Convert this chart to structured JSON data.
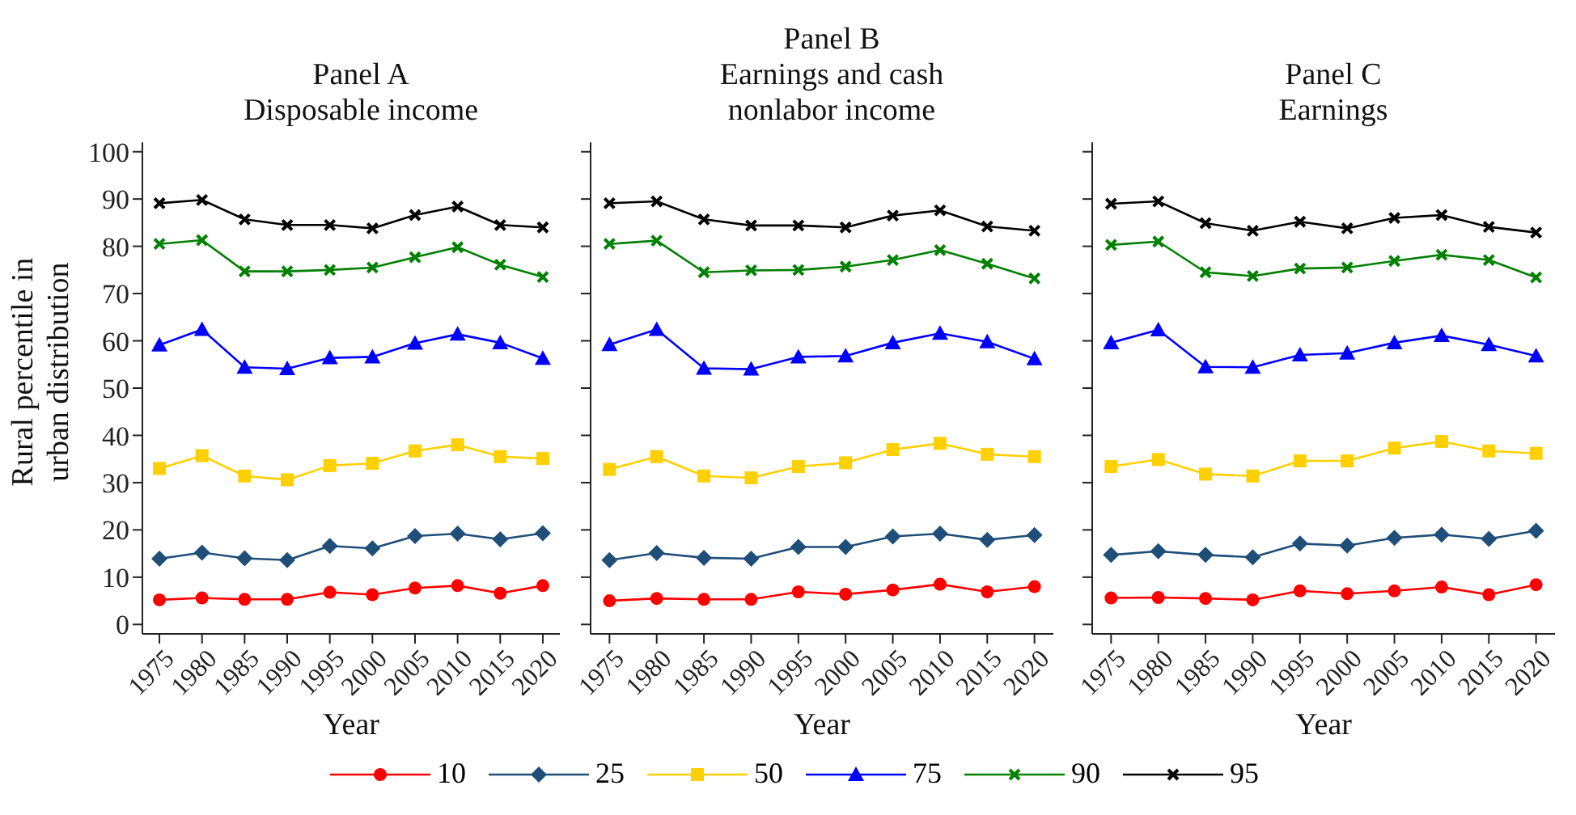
{
  "chart_data": [
    {
      "type": "line",
      "title": "Panel A\nDisposable income",
      "xlabel": "Year",
      "ylabel": "Rural percentile in\nurban distribution",
      "x": [
        1975,
        1980,
        1985,
        1990,
        1995,
        2000,
        2005,
        2010,
        2015,
        2020
      ],
      "xlim": [
        1973,
        2022
      ],
      "xticks": [
        1975,
        1980,
        1985,
        1990,
        1995,
        2000,
        2005,
        2010,
        2015,
        2020
      ],
      "ylim": [
        -2,
        102
      ],
      "yticks": [
        0,
        10,
        20,
        30,
        40,
        50,
        60,
        70,
        80,
        90,
        100
      ],
      "grid": false,
      "legend": "bottom",
      "series": [
        {
          "name": "10",
          "color": "#ff0000",
          "marker": "circle",
          "values": [
            5.2,
            5.6,
            5.3,
            5.3,
            6.8,
            6.3,
            7.7,
            8.2,
            6.6,
            8.2
          ]
        },
        {
          "name": "25",
          "color": "#1f4e79",
          "marker": "diamond",
          "values": [
            13.9,
            15.2,
            14.0,
            13.6,
            16.6,
            16.1,
            18.7,
            19.2,
            18.0,
            19.3
          ]
        },
        {
          "name": "50",
          "color": "#ffd000",
          "marker": "square",
          "values": [
            33.0,
            35.7,
            31.4,
            30.6,
            33.6,
            34.1,
            36.7,
            38.0,
            35.5,
            35.1
          ]
        },
        {
          "name": "75",
          "color": "#0000ff",
          "marker": "triangle",
          "values": [
            59.1,
            62.4,
            54.4,
            54.1,
            56.4,
            56.6,
            59.5,
            61.4,
            59.6,
            56.3
          ]
        },
        {
          "name": "90",
          "color": "#008000",
          "marker": "cross",
          "values": [
            80.5,
            81.3,
            74.7,
            74.7,
            75.0,
            75.5,
            77.7,
            79.8,
            76.1,
            73.5
          ]
        },
        {
          "name": "95",
          "color": "#000000",
          "marker": "cross",
          "values": [
            89.1,
            89.8,
            85.7,
            84.5,
            84.5,
            83.8,
            86.6,
            88.4,
            84.5,
            84.0
          ]
        }
      ]
    },
    {
      "type": "line",
      "title": "Panel B\nEarnings and cash\nnonlabor income",
      "xlabel": "Year",
      "x": [
        1975,
        1980,
        1985,
        1990,
        1995,
        2000,
        2005,
        2010,
        2015,
        2020
      ],
      "xlim": [
        1973,
        2022
      ],
      "xticks": [
        1975,
        1980,
        1985,
        1990,
        1995,
        2000,
        2005,
        2010,
        2015,
        2020
      ],
      "ylim": [
        -2,
        102
      ],
      "yticks": [
        0,
        10,
        20,
        30,
        40,
        50,
        60,
        70,
        80,
        90,
        100
      ],
      "grid": false,
      "tick_labels": "x",
      "series": [
        {
          "color": "#ff0000",
          "marker": "circle",
          "values": [
            5.0,
            5.5,
            5.3,
            5.3,
            6.9,
            6.4,
            7.3,
            8.5,
            6.9,
            8.0
          ]
        },
        {
          "color": "#1f4e79",
          "marker": "diamond",
          "values": [
            13.6,
            15.1,
            14.1,
            13.9,
            16.4,
            16.4,
            18.6,
            19.2,
            17.9,
            18.9
          ]
        },
        {
          "color": "#ffd000",
          "marker": "square",
          "values": [
            32.8,
            35.5,
            31.4,
            31.0,
            33.4,
            34.2,
            37.0,
            38.3,
            36.0,
            35.5
          ]
        },
        {
          "color": "#0000ff",
          "marker": "triangle",
          "values": [
            59.2,
            62.4,
            54.2,
            54.0,
            56.6,
            56.8,
            59.6,
            61.6,
            59.8,
            56.2
          ]
        },
        {
          "color": "#008000",
          "marker": "cross",
          "values": [
            80.5,
            81.2,
            74.5,
            74.9,
            75.0,
            75.7,
            77.1,
            79.2,
            76.3,
            73.2
          ]
        },
        {
          "color": "#000000",
          "marker": "cross",
          "values": [
            89.1,
            89.5,
            85.7,
            84.4,
            84.4,
            84.0,
            86.5,
            87.6,
            84.2,
            83.3
          ]
        }
      ]
    },
    {
      "type": "line",
      "title": "Panel C\nEarnings",
      "xlabel": "Year",
      "x": [
        1975,
        1980,
        1985,
        1990,
        1995,
        2000,
        2005,
        2010,
        2015,
        2020
      ],
      "xlim": [
        1973,
        2022
      ],
      "xticks": [
        1975,
        1980,
        1985,
        1990,
        1995,
        2000,
        2005,
        2010,
        2015,
        2020
      ],
      "ylim": [
        -2,
        102
      ],
      "yticks": [
        0,
        10,
        20,
        30,
        40,
        50,
        60,
        70,
        80,
        90,
        100
      ],
      "grid": false,
      "tick_labels": "x",
      "series": [
        {
          "color": "#ff0000",
          "marker": "circle",
          "values": [
            5.6,
            5.7,
            5.5,
            5.2,
            7.1,
            6.5,
            7.1,
            7.9,
            6.3,
            8.4
          ]
        },
        {
          "color": "#1f4e79",
          "marker": "diamond",
          "values": [
            14.7,
            15.5,
            14.7,
            14.2,
            17.1,
            16.7,
            18.3,
            19.0,
            18.1,
            19.8
          ]
        },
        {
          "color": "#ffd000",
          "marker": "square",
          "values": [
            33.4,
            34.9,
            31.8,
            31.4,
            34.6,
            34.6,
            37.3,
            38.7,
            36.7,
            36.2
          ]
        },
        {
          "color": "#0000ff",
          "marker": "triangle",
          "values": [
            59.6,
            62.3,
            54.5,
            54.4,
            57.0,
            57.4,
            59.6,
            61.1,
            59.2,
            56.8
          ]
        },
        {
          "color": "#008000",
          "marker": "cross",
          "values": [
            80.3,
            81.0,
            74.5,
            73.7,
            75.3,
            75.5,
            76.9,
            78.2,
            77.1,
            73.4
          ]
        },
        {
          "color": "#000000",
          "marker": "cross",
          "values": [
            89.0,
            89.5,
            84.9,
            83.3,
            85.2,
            83.8,
            86.0,
            86.6,
            84.1,
            82.9
          ]
        }
      ]
    }
  ]
}
